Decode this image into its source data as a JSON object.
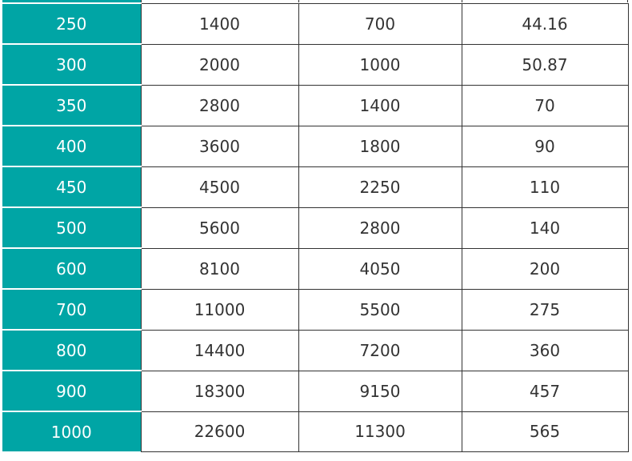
{
  "table": {
    "rows": [
      [
        "250",
        "1400",
        "700",
        "44.16"
      ],
      [
        "300",
        "2000",
        "1000",
        "50.87"
      ],
      [
        "350",
        "2800",
        "1400",
        "70"
      ],
      [
        "400",
        "3600",
        "1800",
        "90"
      ],
      [
        "450",
        "4500",
        "2250",
        "110"
      ],
      [
        "500",
        "5600",
        "2800",
        "140"
      ],
      [
        "600",
        "8100",
        "4050",
        "200"
      ],
      [
        "700",
        "11000",
        "5500",
        "275"
      ],
      [
        "800",
        "14400",
        "7200",
        "360"
      ],
      [
        "900",
        "18300",
        "9150",
        "457"
      ],
      [
        "1000",
        "22600",
        "11300",
        "565"
      ]
    ]
  },
  "colors": {
    "key_column": "#00a5a5",
    "border": "#333333"
  }
}
